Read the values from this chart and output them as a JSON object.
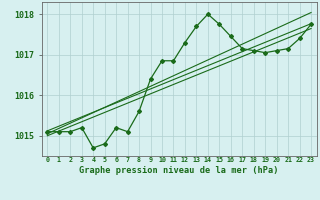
{
  "x": [
    0,
    1,
    2,
    3,
    4,
    5,
    6,
    7,
    8,
    9,
    10,
    11,
    12,
    13,
    14,
    15,
    16,
    17,
    18,
    19,
    20,
    21,
    22,
    23
  ],
  "y": [
    1015.1,
    1015.1,
    1015.1,
    1015.2,
    1014.7,
    1014.8,
    1015.2,
    1015.1,
    1015.6,
    1016.4,
    1016.85,
    1016.85,
    1017.3,
    1017.7,
    1018.0,
    1017.75,
    1017.45,
    1017.15,
    1017.1,
    1017.05,
    1017.1,
    1017.15,
    1017.4,
    1017.75
  ],
  "trend1": [
    1015.05,
    1015.18,
    1015.31,
    1015.44,
    1015.57,
    1015.7,
    1015.83,
    1015.96,
    1016.09,
    1016.22,
    1016.35,
    1016.48,
    1016.61,
    1016.74,
    1016.87,
    1017.0,
    1017.13,
    1017.26,
    1017.39,
    1017.52,
    1017.65,
    1017.78,
    1017.91,
    1018.04
  ],
  "trend2": [
    1015.0,
    1015.115,
    1015.23,
    1015.345,
    1015.46,
    1015.575,
    1015.69,
    1015.805,
    1015.92,
    1016.035,
    1016.15,
    1016.265,
    1016.38,
    1016.495,
    1016.61,
    1016.725,
    1016.84,
    1016.955,
    1017.07,
    1017.185,
    1017.3,
    1017.415,
    1017.53,
    1017.645
  ],
  "trend3": [
    1015.12,
    1015.235,
    1015.35,
    1015.465,
    1015.58,
    1015.695,
    1015.81,
    1015.925,
    1016.04,
    1016.155,
    1016.27,
    1016.385,
    1016.5,
    1016.615,
    1016.73,
    1016.845,
    1016.96,
    1017.075,
    1017.19,
    1017.305,
    1017.42,
    1017.535,
    1017.65,
    1017.765
  ],
  "line_color": "#1a6b1a",
  "bg_color": "#d7f0f0",
  "grid_color": "#b0d0d0",
  "xlabel": "Graphe pression niveau de la mer (hPa)",
  "ylim": [
    1014.5,
    1018.3
  ],
  "xlim": [
    -0.5,
    23.5
  ],
  "yticks": [
    1015,
    1016,
    1017,
    1018
  ],
  "xtick_labels": [
    "0",
    "1",
    "2",
    "3",
    "4",
    "5",
    "6",
    "7",
    "8",
    "9",
    "10",
    "11",
    "12",
    "13",
    "14",
    "15",
    "16",
    "17",
    "18",
    "19",
    "20",
    "21",
    "22",
    "23"
  ]
}
